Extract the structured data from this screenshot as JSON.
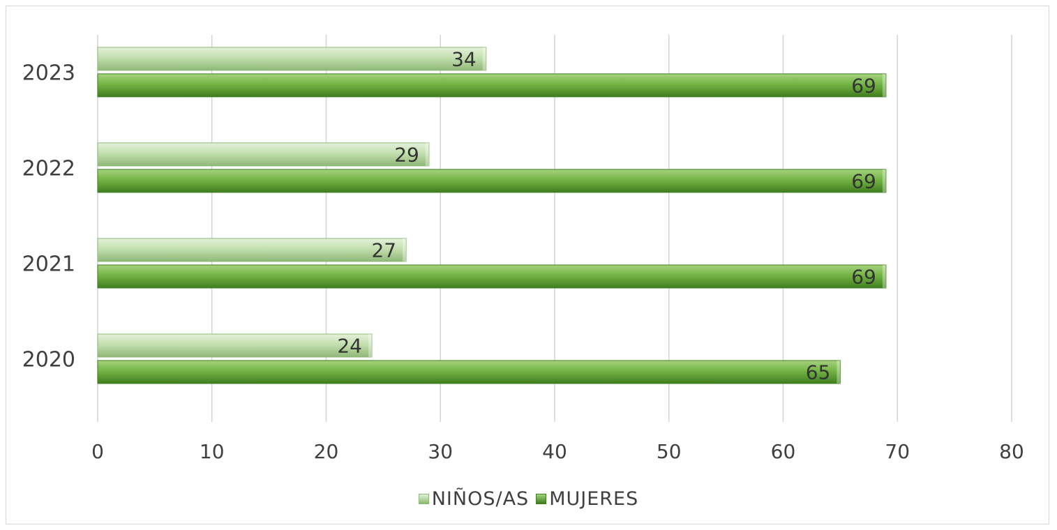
{
  "chart_data": {
    "type": "bar",
    "orientation": "horizontal",
    "categories": [
      "2020",
      "2021",
      "2022",
      "2023"
    ],
    "series": [
      {
        "name": "NIÑOS/AS",
        "values": [
          24,
          27,
          29,
          34
        ],
        "color": "#b7d7a0"
      },
      {
        "name": "MUJERES",
        "values": [
          65,
          69,
          69,
          69
        ],
        "color": "#6fb33c"
      }
    ],
    "xlim": [
      0,
      80
    ],
    "xticks": [
      0,
      10,
      20,
      30,
      40,
      50,
      60,
      70,
      80
    ],
    "grid": "vertical",
    "legend": "bottom",
    "data_labels": true
  }
}
